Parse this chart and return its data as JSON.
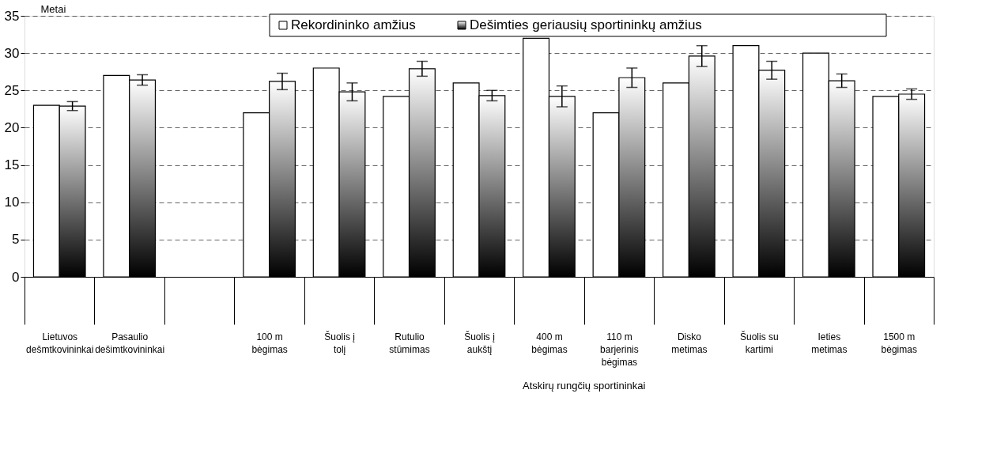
{
  "chart_data": {
    "type": "bar",
    "ylabel": "Metai",
    "categories": [
      "Lietuvos dešmtkovininkai",
      "Pasaulio dešimtkovininkai",
      null,
      "100 m bėgimas",
      "Šuolis į tolį",
      "Rutulio stūmimas",
      "Šuolis į aukštį",
      "400 m bėgimas",
      "110 m barjerinis bėgimas",
      "Disko metimas",
      "Šuolis su kartimi",
      "Ieties metimas",
      "1500 m bėgimas"
    ],
    "series": [
      {
        "name": "Rekordininko amžius",
        "color": "#ffffff",
        "values": [
          23,
          27,
          null,
          22,
          28,
          24.2,
          26,
          32,
          22,
          26,
          31,
          30,
          24.2
        ]
      },
      {
        "name": "Dešimties  geriausių sportininkų amžius",
        "color": "#000000",
        "values": [
          22.9,
          26.4,
          null,
          26.2,
          24.8,
          27.9,
          24.3,
          24.2,
          26.7,
          29.6,
          27.7,
          26.3,
          24.5
        ],
        "errors": [
          0.6,
          0.7,
          null,
          1.1,
          1.2,
          1.0,
          0.7,
          1.4,
          1.3,
          1.4,
          1.2,
          0.9,
          0.7
        ]
      }
    ],
    "annotations": [
      "Atskirų rungčių sportininkai"
    ],
    "ylim": [
      0,
      35
    ],
    "yticks": [
      0,
      5,
      10,
      15,
      20,
      25,
      30,
      35
    ],
    "grid": "y",
    "legend": "top"
  }
}
